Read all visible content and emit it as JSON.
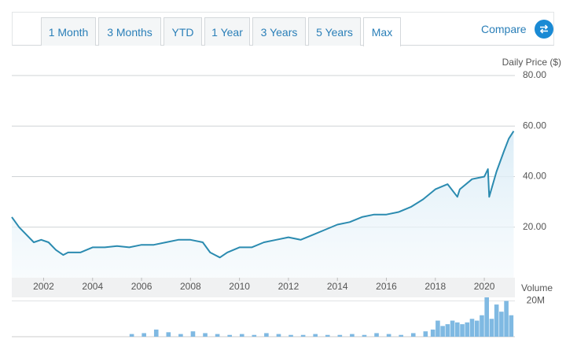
{
  "tabs": [
    "1 Month",
    "3 Months",
    "YTD",
    "1 Year",
    "3 Years",
    "5 Years",
    "Max"
  ],
  "compare": "Compare",
  "chart_data": [
    {
      "type": "line",
      "y_label": "Daily Price ($)",
      "xlim": [
        2000.7,
        2021.25
      ],
      "xticks": [
        2002,
        2004,
        2006,
        2008,
        2010,
        2012,
        2014,
        2016,
        2018,
        2020
      ],
      "ylim": [
        0,
        80
      ],
      "yticks": [
        {
          "value": 20,
          "label": "20.00"
        },
        {
          "value": 40,
          "label": "40.00"
        },
        {
          "value": 60,
          "label": "60.00"
        },
        {
          "value": 80,
          "label": "80.00"
        }
      ],
      "grid": true,
      "series": [
        {
          "color": "#2b8bb0",
          "x": [
            2000.7,
            2001.0,
            2001.3,
            2001.6,
            2001.9,
            2002.2,
            2002.5,
            2002.8,
            2003.0,
            2003.5,
            2004.0,
            2004.5,
            2005.0,
            2005.5,
            2006.0,
            2006.5,
            2007.0,
            2007.5,
            2008.0,
            2008.5,
            2008.8,
            2009.0,
            2009.2,
            2009.5,
            2010.0,
            2010.5,
            2011.0,
            2011.5,
            2012.0,
            2012.5,
            2013.0,
            2013.5,
            2014.0,
            2014.5,
            2015.0,
            2015.5,
            2016.0,
            2016.5,
            2017.0,
            2017.5,
            2018.0,
            2018.5,
            2018.9,
            2019.0,
            2019.5,
            2020.0,
            2020.15,
            2020.2,
            2020.5,
            2020.8,
            2021.0,
            2021.2
          ],
          "values": [
            24,
            20,
            17,
            14,
            15,
            14,
            11,
            9,
            10,
            10,
            12,
            12,
            12.5,
            12,
            13,
            13,
            14,
            15,
            15,
            14,
            10,
            9,
            8,
            10,
            12,
            12,
            14,
            15,
            16,
            15,
            17,
            19,
            21,
            22,
            24,
            25,
            25,
            26,
            28,
            31,
            35,
            37,
            32,
            35,
            39,
            40,
            43,
            32,
            42,
            50,
            55,
            58
          ]
        }
      ]
    },
    {
      "type": "bar",
      "y_label": "Volume",
      "color": "#7fb9e2",
      "xlim": [
        2000.7,
        2021.25
      ],
      "ylim": [
        0,
        22
      ],
      "yticks": [
        {
          "value": 20,
          "label": "20M"
        }
      ],
      "x": [
        2005.6,
        2006.1,
        2006.6,
        2007.1,
        2007.6,
        2008.1,
        2008.6,
        2009.1,
        2009.6,
        2010.1,
        2010.6,
        2011.1,
        2011.6,
        2012.1,
        2012.6,
        2013.1,
        2013.6,
        2014.1,
        2014.6,
        2015.1,
        2015.6,
        2016.1,
        2016.6,
        2017.1,
        2017.6,
        2017.9,
        2018.1,
        2018.3,
        2018.5,
        2018.7,
        2018.9,
        2019.1,
        2019.3,
        2019.5,
        2019.7,
        2019.9,
        2020.1,
        2020.3,
        2020.5,
        2020.7,
        2020.9,
        2021.1
      ],
      "values": [
        1.5,
        2,
        4,
        2.5,
        1.5,
        3,
        2,
        1.5,
        1,
        1.5,
        1,
        2,
        1.5,
        1,
        1,
        1.5,
        1,
        1,
        1.5,
        1,
        2,
        1.5,
        1,
        2,
        3,
        4,
        9,
        6,
        7,
        9,
        8,
        7,
        8,
        10,
        9,
        12,
        22,
        10,
        18,
        14,
        20,
        12
      ]
    }
  ]
}
